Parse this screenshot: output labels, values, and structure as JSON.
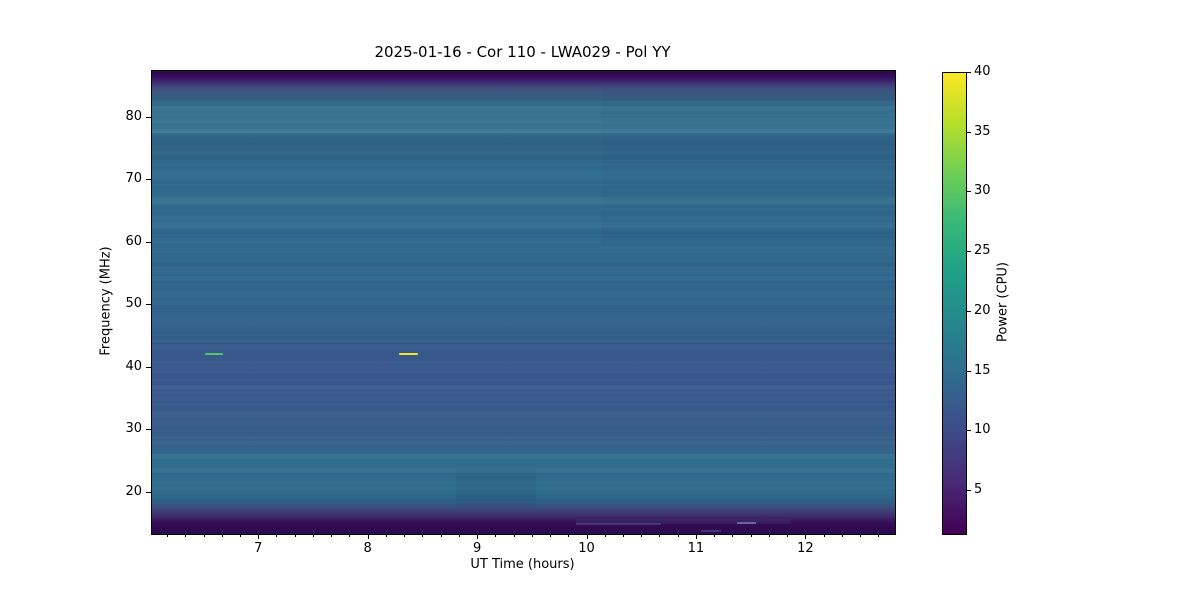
{
  "chart_data": {
    "type": "heatmap",
    "title": "2025-01-16 - Cor 110 - LWA029 - Pol YY",
    "xlabel": "UT Time (hours)",
    "ylabel": "Frequency (MHz)",
    "xlim": [
      6.02,
      12.81
    ],
    "ylim": [
      13.4,
      87.5
    ],
    "x_major_ticks": [
      7,
      8,
      9,
      10,
      11,
      12
    ],
    "x_minor_tick_interval_hours": 0.16667,
    "y_major_ticks": [
      20,
      30,
      40,
      50,
      60,
      70,
      80
    ],
    "grid": false,
    "colormap": "viridis",
    "colorbar": {
      "label": "Power (CPU)",
      "ticks": [
        5,
        10,
        15,
        20,
        25,
        30,
        35,
        40
      ],
      "range_estimate": [
        1.4,
        40
      ],
      "position": "right"
    },
    "background_bands": [
      {
        "freq_range_mhz": [
          85.5,
          87.5
        ],
        "approx_power": 2,
        "note": "dark band edge at top"
      },
      {
        "freq_range_mhz": [
          83.0,
          85.5
        ],
        "approx_power": 8,
        "note": "purple-to-blue transition"
      },
      {
        "freq_range_mhz": [
          45.0,
          83.0
        ],
        "approx_power": 17,
        "note": "teal plateau with faint horizontal striping"
      },
      {
        "freq_range_mhz": [
          25.0,
          44.5
        ],
        "approx_power": 13,
        "note": "bluer lower-power band"
      },
      {
        "freq_range_mhz": [
          16.0,
          25.0
        ],
        "approx_power": 16,
        "note": "teal band"
      },
      {
        "freq_range_mhz": [
          13.4,
          16.0
        ],
        "approx_power": 2,
        "note": "dark band edge at bottom"
      }
    ],
    "features": [
      {
        "name": "narrowband emission segment 1",
        "time_hours": [
          6.5,
          6.67
        ],
        "freq_mhz": 42.2,
        "approx_power": 30,
        "color": "#55c667"
      },
      {
        "name": "narrowband emission segment 2",
        "time_hours": [
          8.28,
          8.45
        ],
        "freq_mhz": 42.2,
        "approx_power": 40,
        "color": "#fbe723"
      }
    ]
  },
  "colors": {
    "figure_background": "#ffffff",
    "text": "#000000",
    "spine": "#000000",
    "viridis_stops": [
      "#440154",
      "#482878",
      "#3e4989",
      "#31688e",
      "#26828e",
      "#1f9e89",
      "#35b779",
      "#6ece58",
      "#b5de2b",
      "#fde725"
    ]
  }
}
